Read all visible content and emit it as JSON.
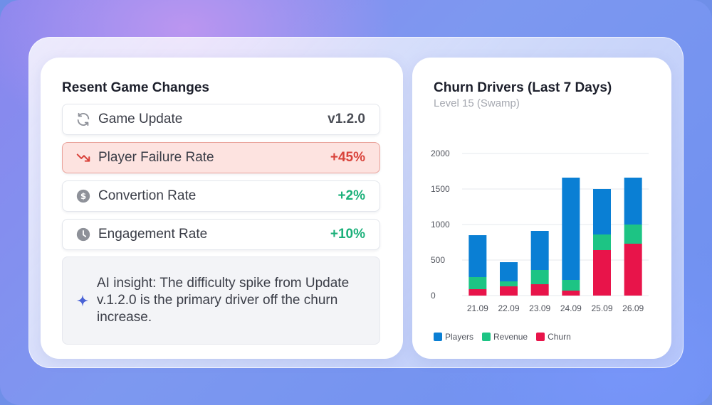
{
  "left_card": {
    "title": "Resent Game Changes",
    "rows": [
      {
        "icon": "refresh-icon",
        "label": "Game Update",
        "value": "v1.2.0",
        "tone": "neutral"
      },
      {
        "icon": "trend-down-icon",
        "label": "Player Failure Rate",
        "value": "+45%",
        "tone": "bad"
      },
      {
        "icon": "dollar-icon",
        "label": "Convertion Rate",
        "value": "+2%",
        "tone": "good"
      },
      {
        "icon": "clock-icon",
        "label": "Engagement Rate",
        "value": "+10%",
        "tone": "good"
      }
    ],
    "insight": {
      "icon": "sparkle-icon",
      "text": "AI insight: The difficulty spike from Update v.1.2.0 is the primary driver off the churn increase."
    }
  },
  "chart_data": {
    "type": "bar",
    "stacked": true,
    "title": "Churn Drivers (Last 7 Days)",
    "subtitle": "Level 15 (Swamp)",
    "categories": [
      "21.09",
      "22.09",
      "23.09",
      "24.09",
      "25.09",
      "26.09"
    ],
    "series": [
      {
        "name": "Churn",
        "color": "#e8144a",
        "values": [
          90,
          130,
          160,
          70,
          640,
          730
        ]
      },
      {
        "name": "Revenue",
        "color": "#1dc484",
        "values": [
          170,
          70,
          200,
          150,
          220,
          270
        ]
      },
      {
        "name": "Players",
        "color": "#0a7fd4",
        "values": [
          590,
          270,
          550,
          1440,
          640,
          660
        ]
      }
    ],
    "legend_order": [
      "Players",
      "Revenue",
      "Churn"
    ],
    "yticks": [
      0,
      500,
      1000,
      1500,
      2000
    ],
    "ylim": [
      0,
      2000
    ],
    "grid": true,
    "legend_position": "bottom-left"
  },
  "colors": {
    "bad": "#d9423a",
    "good": "#1bb07a",
    "alert_bg": "#fde3e0",
    "accent": "#4a63d6"
  }
}
